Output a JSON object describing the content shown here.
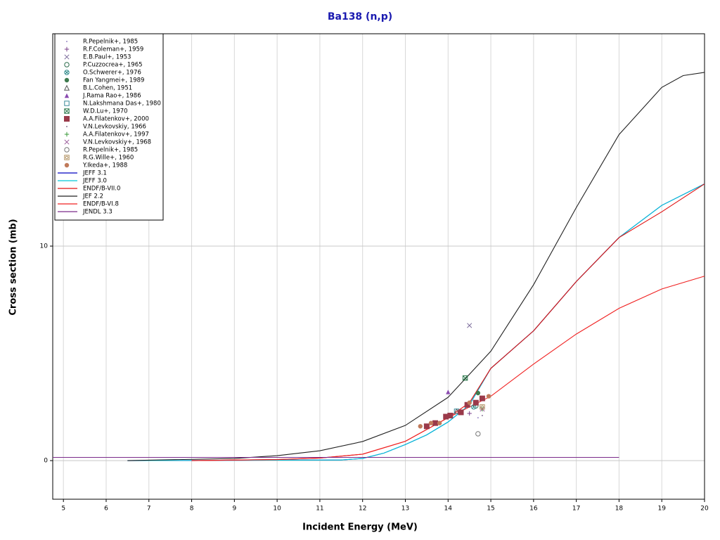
{
  "chart_data": {
    "type": "line",
    "title": "Ba138 (n,p)",
    "x_label": "Incident Energy (MeV)",
    "y_label": "Cross section (mb)",
    "xlim": [
      4.75,
      20
    ],
    "ylim": [
      -1.8,
      19.9
    ],
    "xticks": [
      5,
      6,
      7,
      8,
      9,
      10,
      11,
      12,
      13,
      14,
      15,
      16,
      17,
      18,
      19,
      20
    ],
    "yticks": [
      0,
      10
    ],
    "grid": true,
    "legend": "upper left",
    "series": [
      {
        "name": "R.Pepelnik+, 1985",
        "type": "scatter",
        "marker": "dot",
        "color": "#9a8ac8",
        "x": [
          14.7
        ],
        "values": [
          2.0
        ]
      },
      {
        "name": "R.F.Coleman+, 1959",
        "type": "scatter",
        "marker": "plus",
        "color": "#7a3f8a",
        "x": [
          14.5
        ],
        "values": [
          2.2
        ]
      },
      {
        "name": "E.B.Paul+, 1953",
        "type": "scatter",
        "marker": "cross",
        "color": "#7a6a9a",
        "x": [
          14.5
        ],
        "values": [
          6.3
        ]
      },
      {
        "name": "P.Cuzzocrea+, 1965",
        "type": "scatter",
        "marker": "circle",
        "color": "#2e6e4e",
        "x": [
          14.65
        ],
        "values": [
          2.55
        ]
      },
      {
        "name": "O.Schwerer+, 1976",
        "type": "scatter",
        "marker": "circlecross",
        "color": "#2e8a8a",
        "x": [
          14.6
        ],
        "values": [
          2.5
        ]
      },
      {
        "name": "Fan Yangmei+, 1989",
        "type": "scatter",
        "marker": "disc",
        "color": "#3e7a4e",
        "x": [
          14.7
        ],
        "values": [
          3.15
        ]
      },
      {
        "name": "B.L.Cohen, 1951",
        "type": "scatter",
        "marker": "triangle",
        "color": "#555555",
        "x": [
          14.2
        ],
        "values": [
          2.3
        ]
      },
      {
        "name": "J.Rama Rao+, 1986",
        "type": "scatter",
        "marker": "filltriangle",
        "color": "#8a4ab0",
        "x": [
          14.0
        ],
        "values": [
          3.2
        ]
      },
      {
        "name": "N.Lakshmana Das+, 1980",
        "type": "scatter",
        "marker": "square",
        "color": "#3a8a9a",
        "x": [
          14.2
        ],
        "values": [
          2.3
        ]
      },
      {
        "name": "W.D.Lu+, 1970",
        "type": "scatter",
        "marker": "squarecross",
        "color": "#2e7a4e",
        "x": [
          14.4
        ],
        "values": [
          3.85
        ]
      },
      {
        "name": "A.A.Filatenkov+, 2000",
        "type": "scatter",
        "marker": "fillsquare",
        "color": "#9a3a4a",
        "x": [
          13.5,
          13.7,
          13.95,
          14.05,
          14.3,
          14.45,
          14.65,
          14.8
        ],
        "values": [
          1.6,
          1.75,
          2.05,
          2.1,
          2.25,
          2.6,
          2.7,
          2.9
        ]
      },
      {
        "name": "V.N.Levkovskiy, 1966",
        "type": "scatter",
        "marker": "dot",
        "color": "#8a7a9a",
        "x": [
          14.8
        ],
        "values": [
          2.1
        ]
      },
      {
        "name": "A.A.Filatenkov+, 1997",
        "type": "scatter",
        "marker": "plus",
        "color": "#3a9a3a",
        "x": [
          14.8
        ],
        "values": [
          2.4
        ]
      },
      {
        "name": "V.N.Levkovskiy+, 1968",
        "type": "scatter",
        "marker": "cross",
        "color": "#9a5a9a",
        "x": [
          14.8
        ],
        "values": [
          2.4
        ]
      },
      {
        "name": "R.Pepelnik+, 1985",
        "type": "scatter",
        "marker": "circle",
        "color": "#777777",
        "x": [
          14.7
        ],
        "values": [
          1.25
        ]
      },
      {
        "name": "R.G.Wille+, 1960",
        "type": "scatter",
        "marker": "circlesquare",
        "color": "#b09060",
        "x": [
          14.8
        ],
        "values": [
          2.5
        ]
      },
      {
        "name": "Y.Ikeda+, 1988",
        "type": "scatter",
        "marker": "disc",
        "color": "#c07a5a",
        "x": [
          13.35,
          13.6,
          13.8,
          14.5,
          14.95
        ],
        "values": [
          1.6,
          1.75,
          1.75,
          2.7,
          3.0
        ]
      },
      {
        "name": "JEFF 3.1",
        "type": "line",
        "color": "#0000c0",
        "x": [
          6.5,
          11.5,
          12,
          12.5,
          13,
          13.5,
          14,
          14.5,
          15,
          16,
          17,
          18,
          19,
          20
        ],
        "values": [
          0,
          0.03,
          0.1,
          0.35,
          0.75,
          1.2,
          1.8,
          2.6,
          4.3,
          6.05,
          8.35,
          10.4,
          11.9,
          12.9
        ]
      },
      {
        "name": "JEFF 3.0",
        "type": "line",
        "color": "#00c8d8",
        "x": [
          6.5,
          11.5,
          12,
          12.5,
          13,
          13.5,
          14,
          14.5,
          15,
          16,
          17,
          18,
          19,
          20
        ],
        "values": [
          0,
          0.03,
          0.1,
          0.35,
          0.75,
          1.2,
          1.8,
          2.6,
          4.3,
          6.05,
          8.35,
          10.4,
          11.9,
          12.9
        ]
      },
      {
        "name": "ENDF/B-VII.0",
        "type": "line",
        "color": "#e01010",
        "x": [
          8,
          10,
          11,
          12,
          13,
          14,
          14.5,
          15,
          16,
          17,
          18,
          19,
          20
        ],
        "values": [
          0,
          0.05,
          0.12,
          0.3,
          0.9,
          2.0,
          2.7,
          4.3,
          6.05,
          8.35,
          10.4,
          11.6,
          12.9
        ]
      },
      {
        "name": "JEF 2.2",
        "type": "line",
        "color": "#202020",
        "x": [
          6.5,
          9,
          10,
          11,
          12,
          13,
          14,
          15,
          16,
          17,
          18,
          19,
          19.5,
          20
        ],
        "values": [
          0,
          0.1,
          0.23,
          0.46,
          0.89,
          1.64,
          2.95,
          5.1,
          8.2,
          11.8,
          15.2,
          17.4,
          17.95,
          18.1
        ]
      },
      {
        "name": "ENDF/B-VI.8",
        "type": "line",
        "color": "#f02020",
        "x": [
          8,
          10,
          11,
          12,
          13,
          14,
          14.5,
          15,
          16,
          17,
          18,
          19,
          20
        ],
        "values": [
          0,
          0.05,
          0.12,
          0.3,
          0.9,
          2.0,
          2.5,
          3.0,
          4.5,
          5.9,
          7.1,
          8.0,
          8.6
        ]
      },
      {
        "name": "JENDL 3.3",
        "type": "line",
        "color": "#7a2a8a",
        "x": [
          4.75,
          18
        ],
        "values": [
          0.15,
          0.15
        ]
      }
    ]
  }
}
